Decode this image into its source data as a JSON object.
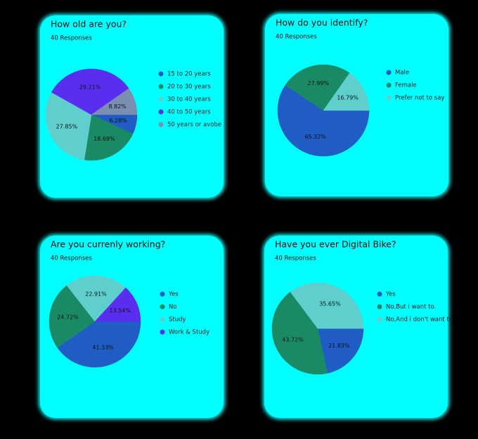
{
  "chart_data": [
    {
      "type": "pie",
      "title": "How old are you?",
      "subtitle": "40 Responses",
      "categories": [
        "15 to 20 years",
        "20 to 30 years",
        "30 to 40 years",
        "40 to 50 years",
        "50 years or avobe"
      ],
      "values": [
        6.28,
        18.69,
        27.85,
        29.21,
        8.82
      ],
      "value_labels": [
        "6.28%",
        "18.69%",
        "27.85%",
        "29.21%",
        "8.82%"
      ],
      "colors": [
        "#1f5cc4",
        "#1a8a66",
        "#5ecfcc",
        "#5a2ef0",
        "#7a8eb2"
      ]
    },
    {
      "type": "pie",
      "title": "How do you identify?",
      "subtitle": "40 Responses",
      "categories": [
        "Male",
        "Female",
        "Prefer not to say"
      ],
      "values": [
        65.32,
        27.99,
        16.79
      ],
      "value_labels": [
        "65.32%",
        "27.99%",
        "16.79%"
      ],
      "colors": [
        "#1f5cc4",
        "#1a8a66",
        "#5ecfcc"
      ]
    },
    {
      "type": "pie",
      "title": "Are you currenly working?",
      "subtitle": "40 Responses",
      "categories": [
        "Yes",
        "No",
        "Study",
        "Work & Study"
      ],
      "values": [
        41.33,
        24.72,
        22.91,
        13.54
      ],
      "value_labels": [
        "41.33%",
        "24.72%",
        "22.91%",
        "13.54%"
      ],
      "colors": [
        "#1f5cc4",
        "#1a8a66",
        "#5ecfcc",
        "#5a2ef0"
      ]
    },
    {
      "type": "pie",
      "title": "Have you ever Digital Bike?",
      "subtitle": "40 Responses",
      "categories": [
        "Yes",
        "No,But i want to.",
        "No,And i don't want to"
      ],
      "values": [
        21.83,
        43.72,
        35.65
      ],
      "value_labels": [
        "21.83%",
        "43.72%",
        "35.65%"
      ],
      "colors": [
        "#1f5cc4",
        "#1a8a66",
        "#5ecfcc"
      ]
    }
  ]
}
